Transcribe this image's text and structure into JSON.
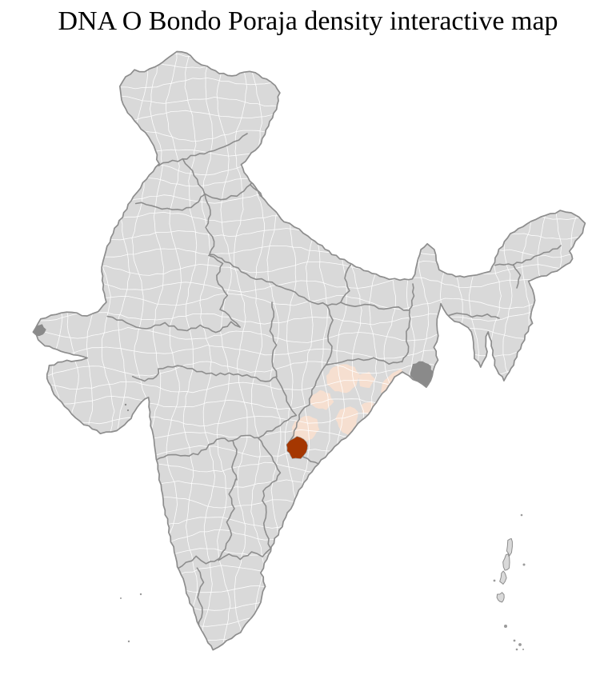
{
  "title": "DNA O Bondo Poraja density interactive map",
  "map": {
    "country": "India",
    "kind": "district choropleth (interactive)",
    "density_scale": {
      "high_color": "#A53701",
      "low_color": "#F6DFD0",
      "none_color": "#D9D9D9"
    },
    "highlighted_districts": {
      "high_density_count": 1,
      "low_density_count": 7,
      "region": "southern Odisha and adjacent coast"
    },
    "colors": {
      "background": "#FFFFFF",
      "land": "#D9D9D9",
      "district_border": "#FFFFFF",
      "state_border": "#8D8D8D",
      "country_border": "#8D8D8D",
      "delta_marsh": "#8A8A8A",
      "island_fill": "#D9D9D9",
      "island_stroke": "#8D8D8D",
      "small_island_dot": "#9A9A9A",
      "title_color": "#000000"
    }
  }
}
